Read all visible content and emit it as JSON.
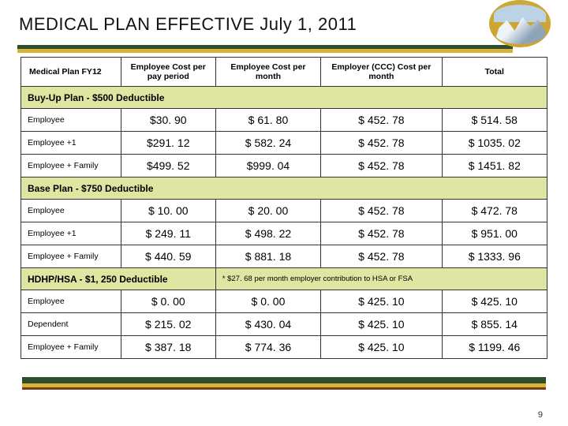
{
  "title": "MEDICAL PLAN EFFECTIVE July 1, 2011",
  "page_number": 9,
  "accent_green": "#2e4f2a",
  "accent_gold": "#d7b23a",
  "section_bg": "#dfe6a1",
  "columns": {
    "c0": "Medical Plan FY12",
    "c1": "Employee Cost per pay period",
    "c2": "Employee Cost per month",
    "c3": "Employer (CCC) Cost per month",
    "c4": "Total"
  },
  "sections": [
    {
      "heading": "Buy-Up Plan - $500 Deductible",
      "note": null,
      "rows": [
        {
          "label": "Employee",
          "pp": "$30. 90",
          "pm": "$ 61. 80",
          "er": "$ 452. 78",
          "tot": "$ 514. 58"
        },
        {
          "label": "Employee +1",
          "pp": "$291. 12",
          "pm": "$ 582. 24",
          "er": "$ 452. 78",
          "tot": "$ 1035. 02"
        },
        {
          "label": "Employee + Family",
          "pp": "$499. 52",
          "pm": "$999. 04",
          "er": "$ 452. 78",
          "tot": "$ 1451. 82"
        }
      ]
    },
    {
      "heading": "Base Plan - $750 Deductible",
      "note": null,
      "rows": [
        {
          "label": "Employee",
          "pp": "$ 10. 00",
          "pm": "$ 20. 00",
          "er": "$ 452. 78",
          "tot": "$ 472. 78"
        },
        {
          "label": "Employee +1",
          "pp": "$ 249. 11",
          "pm": "$ 498. 22",
          "er": "$ 452. 78",
          "tot": "$ 951. 00"
        },
        {
          "label": "Employee + Family",
          "pp": "$ 440. 59",
          "pm": "$ 881. 18",
          "er": "$ 452. 78",
          "tot": "$ 1333. 96"
        }
      ]
    },
    {
      "heading": "HDHP/HSA - $1, 250 Deductible",
      "note": "* $27. 68 per month employer contribution to HSA or FSA",
      "rows": [
        {
          "label": "Employee",
          "pp": "$ 0. 00",
          "pm": "$ 0. 00",
          "er": "$ 425. 10",
          "tot": "$ 425. 10"
        },
        {
          "label": "Dependent",
          "pp": "$ 215. 02",
          "pm": "$ 430. 04",
          "er": "$ 425. 10",
          "tot": "$ 855. 14"
        },
        {
          "label": "Employee + Family",
          "pp": "$ 387. 18",
          "pm": "$ 774. 36",
          "er": "$ 425. 10",
          "tot": "$ 1199. 46"
        }
      ]
    }
  ]
}
